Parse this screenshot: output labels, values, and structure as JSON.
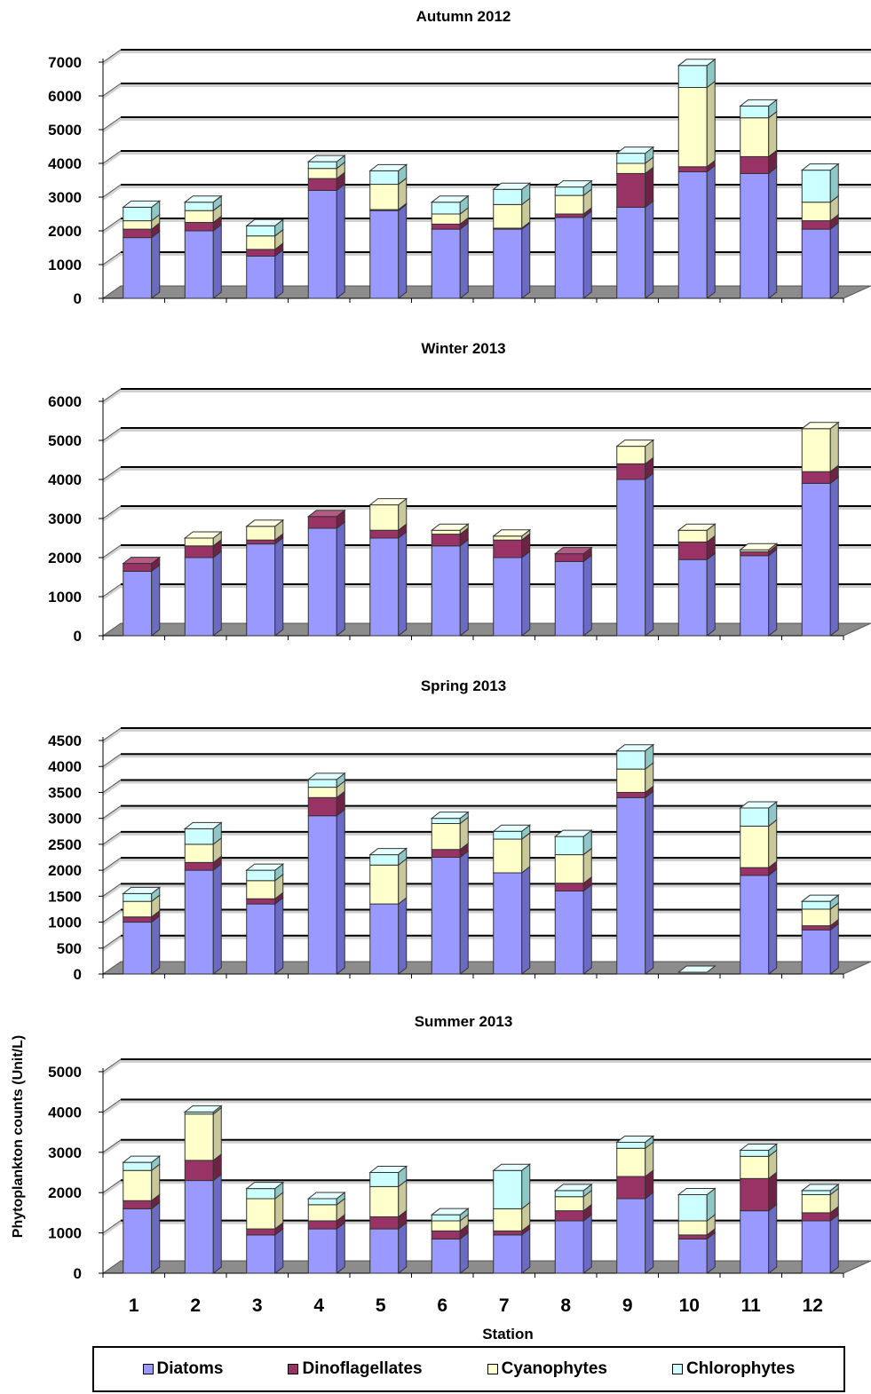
{
  "chart_data": [
    {
      "type": "bar",
      "stacked": true,
      "title": "Autumn 2012",
      "categories": [
        "1",
        "2",
        "3",
        "4",
        "5",
        "6",
        "7",
        "8",
        "9",
        "10",
        "11",
        "12"
      ],
      "ylim": [
        0,
        7000
      ],
      "yticks": [
        "0",
        "1000",
        "2000",
        "3000",
        "4000",
        "5000",
        "6000",
        "7000"
      ],
      "series": [
        {
          "name": "Diatoms",
          "values": [
            1800,
            2000,
            1250,
            3200,
            2600,
            2050,
            2050,
            2400,
            2700,
            3750,
            3700,
            2050
          ]
        },
        {
          "name": "Dinoflagellates",
          "values": [
            250,
            250,
            200,
            350,
            30,
            150,
            30,
            100,
            1000,
            150,
            500,
            250
          ]
        },
        {
          "name": "Cyanophytes",
          "values": [
            250,
            350,
            400,
            300,
            750,
            300,
            700,
            550,
            300,
            2350,
            1150,
            550
          ]
        },
        {
          "name": "Chlorophytes",
          "values": [
            400,
            250,
            300,
            200,
            400,
            350,
            450,
            250,
            300,
            650,
            350,
            950
          ]
        }
      ]
    },
    {
      "type": "bar",
      "stacked": true,
      "title": "Winter 2013",
      "categories": [
        "1",
        "2",
        "3",
        "4",
        "5",
        "6",
        "7",
        "8",
        "9",
        "10",
        "11",
        "12"
      ],
      "ylim": [
        0,
        6000
      ],
      "yticks": [
        "0",
        "1000",
        "2000",
        "3000",
        "4000",
        "5000",
        "6000"
      ],
      "series": [
        {
          "name": "Diatoms",
          "values": [
            1650,
            2000,
            2350,
            2750,
            2500,
            2300,
            2000,
            1900,
            4000,
            1950,
            2050,
            3900
          ]
        },
        {
          "name": "Dinoflagellates",
          "values": [
            200,
            300,
            100,
            300,
            200,
            300,
            450,
            200,
            400,
            450,
            100,
            300
          ]
        },
        {
          "name": "Cyanophytes",
          "values": [
            0,
            200,
            350,
            0,
            650,
            100,
            100,
            0,
            450,
            300,
            50,
            1100
          ]
        },
        {
          "name": "Chlorophytes",
          "values": [
            0,
            0,
            0,
            0,
            0,
            0,
            0,
            0,
            0,
            0,
            0,
            0
          ]
        }
      ]
    },
    {
      "type": "bar",
      "stacked": true,
      "title": "Spring 2013",
      "categories": [
        "1",
        "2",
        "3",
        "4",
        "5",
        "6",
        "7",
        "8",
        "9",
        "10",
        "11",
        "12"
      ],
      "ylim": [
        0,
        4500
      ],
      "yticks": [
        "0",
        "500",
        "1000",
        "1500",
        "2000",
        "2500",
        "3000",
        "3500",
        "4000",
        "4500"
      ],
      "series": [
        {
          "name": "Diatoms",
          "values": [
            1000,
            2000,
            1350,
            3050,
            1350,
            2250,
            1950,
            1600,
            3400,
            0,
            1900,
            850
          ]
        },
        {
          "name": "Dinoflagellates",
          "values": [
            100,
            150,
            100,
            350,
            0,
            150,
            0,
            150,
            100,
            0,
            150,
            80
          ]
        },
        {
          "name": "Cyanophytes",
          "values": [
            300,
            350,
            350,
            200,
            750,
            500,
            650,
            550,
            450,
            0,
            800,
            320
          ]
        },
        {
          "name": "Chlorophytes",
          "values": [
            150,
            300,
            200,
            150,
            200,
            100,
            150,
            350,
            350,
            0,
            350,
            150
          ]
        }
      ]
    },
    {
      "type": "bar",
      "stacked": true,
      "title": "Summer 2013",
      "categories": [
        "1",
        "2",
        "3",
        "4",
        "5",
        "6",
        "7",
        "8",
        "9",
        "10",
        "11",
        "12"
      ],
      "ylim": [
        0,
        5000
      ],
      "yticks": [
        "0",
        "1000",
        "2000",
        "3000",
        "4000",
        "5000"
      ],
      "xlabel": "Station",
      "ylabel": "Phytoplankton counts (Unit/L)",
      "series": [
        {
          "name": "Diatoms",
          "values": [
            1600,
            2300,
            950,
            1100,
            1100,
            850,
            950,
            1300,
            1850,
            850,
            1550,
            1300
          ]
        },
        {
          "name": "Dinoflagellates",
          "values": [
            200,
            500,
            150,
            200,
            300,
            200,
            100,
            250,
            550,
            100,
            800,
            200
          ]
        },
        {
          "name": "Cyanophytes",
          "values": [
            750,
            1150,
            750,
            400,
            750,
            250,
            550,
            350,
            700,
            350,
            550,
            450
          ]
        },
        {
          "name": "Chlorophytes",
          "values": [
            200,
            50,
            250,
            150,
            350,
            150,
            950,
            150,
            150,
            650,
            150,
            100
          ]
        }
      ]
    }
  ],
  "legend": [
    {
      "label": "Diatoms",
      "color": "#9999ff"
    },
    {
      "label": "Dinoflagellates",
      "color": "#993366"
    },
    {
      "label": "Cyanophytes",
      "color": "#ffffcc"
    },
    {
      "label": "Chlorophytes",
      "color": "#ccffff"
    }
  ],
  "series_colors": [
    "#9999ff",
    "#993366",
    "#ffffcc",
    "#ccffff"
  ]
}
